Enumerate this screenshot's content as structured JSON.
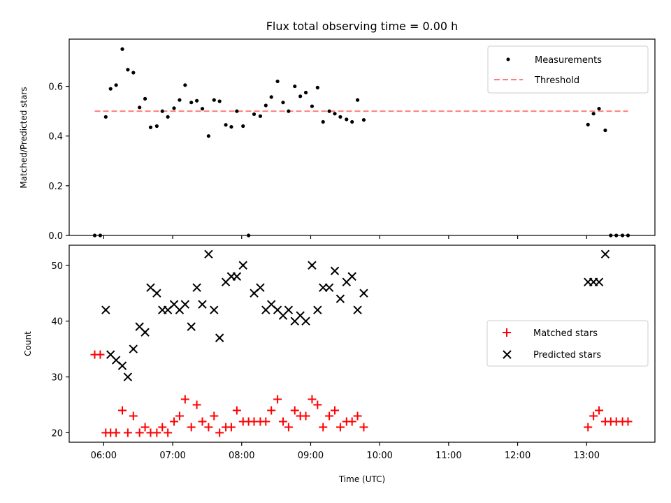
{
  "title": "Flux total observing time = 0.00 h",
  "chart_data": [
    {
      "type": "scatter",
      "name": "top-panel",
      "ylabel": "Matched/Predicted stars",
      "ylim": [
        0,
        0.79
      ],
      "yticks": [
        0.0,
        0.2,
        0.4,
        0.6
      ],
      "ytick_labels": [
        "0.0",
        "0.2",
        "0.4",
        "0.6"
      ],
      "legend_position": "top-right",
      "series": [
        {
          "name": "Measurements",
          "kind": "points",
          "color": "#000000",
          "x": [
            5.87,
            5.95,
            6.03,
            6.1,
            6.18,
            6.27,
            6.35,
            6.43,
            6.52,
            6.6,
            6.68,
            6.77,
            6.85,
            6.93,
            7.02,
            7.1,
            7.18,
            7.27,
            7.35,
            7.43,
            7.52,
            7.6,
            7.68,
            7.77,
            7.85,
            7.93,
            8.02,
            8.1,
            8.18,
            8.27,
            8.35,
            8.43,
            8.52,
            8.6,
            8.68,
            8.77,
            8.85,
            8.93,
            9.02,
            9.1,
            9.18,
            9.27,
            9.35,
            9.43,
            9.52,
            9.6,
            9.68,
            9.77,
            13.02,
            13.1,
            13.18,
            13.27,
            13.35,
            13.43,
            13.52,
            13.6
          ],
          "y": [
            0.0,
            0.0,
            0.477,
            0.59,
            0.605,
            0.75,
            0.667,
            0.655,
            0.515,
            0.55,
            0.435,
            0.44,
            0.5,
            0.477,
            0.512,
            0.545,
            0.605,
            0.535,
            0.542,
            0.51,
            0.4,
            0.545,
            0.54,
            0.445,
            0.437,
            0.5,
            0.44,
            0.0,
            0.488,
            0.48,
            0.523,
            0.557,
            0.62,
            0.535,
            0.5,
            0.6,
            0.56,
            0.575,
            0.52,
            0.595,
            0.457,
            0.5,
            0.49,
            0.477,
            0.467,
            0.457,
            0.545,
            0.465,
            0.446,
            0.49,
            0.51,
            0.423,
            0.0,
            0.0,
            0.0,
            0.0
          ]
        },
        {
          "name": "Threshold",
          "kind": "dashed-line",
          "color": "#ff7f7f",
          "x": [
            5.87,
            13.6
          ],
          "y": [
            0.5,
            0.5
          ]
        }
      ]
    },
    {
      "type": "scatter",
      "name": "bottom-panel",
      "ylabel": "Count",
      "xlabel": "Time (UTC)",
      "ylim": [
        18.3,
        53.6
      ],
      "yticks": [
        20,
        30,
        40,
        50
      ],
      "ytick_labels": [
        "20",
        "30",
        "40",
        "50"
      ],
      "xlim": [
        5.5,
        13.99
      ],
      "xticks": [
        6,
        7,
        8,
        9,
        10,
        11,
        12,
        13
      ],
      "xtick_labels": [
        "06:00",
        "07:00",
        "08:00",
        "09:00",
        "10:00",
        "11:00",
        "12:00",
        "13:00"
      ],
      "legend_position": "center-right",
      "series": [
        {
          "name": "Matched stars",
          "kind": "plus",
          "color": "#ff0000",
          "x": [
            5.87,
            5.95,
            6.03,
            6.1,
            6.18,
            6.27,
            6.35,
            6.43,
            6.52,
            6.6,
            6.68,
            6.77,
            6.85,
            6.93,
            7.02,
            7.1,
            7.18,
            7.27,
            7.35,
            7.43,
            7.52,
            7.6,
            7.68,
            7.77,
            7.85,
            7.93,
            8.02,
            8.1,
            8.18,
            8.27,
            8.35,
            8.43,
            8.52,
            8.6,
            8.68,
            8.77,
            8.85,
            8.93,
            9.02,
            9.1,
            9.18,
            9.27,
            9.35,
            9.43,
            9.52,
            9.6,
            9.68,
            9.77,
            13.02,
            13.1,
            13.18,
            13.27,
            13.35,
            13.43,
            13.52,
            13.6
          ],
          "y": [
            34,
            34,
            20,
            20,
            20,
            24,
            20,
            23,
            20,
            21,
            20,
            20,
            21,
            20,
            22,
            23,
            26,
            21,
            25,
            22,
            21,
            23,
            20,
            21,
            21,
            24,
            22,
            22,
            22,
            22,
            22,
            24,
            26,
            22,
            21,
            24,
            23,
            23,
            26,
            25,
            21,
            23,
            24,
            21,
            22,
            22,
            23,
            21,
            21,
            23,
            24,
            22,
            22,
            22,
            22,
            22
          ]
        },
        {
          "name": "Predicted stars",
          "kind": "x",
          "color": "#000000",
          "x": [
            6.03,
            6.1,
            6.18,
            6.27,
            6.35,
            6.43,
            6.52,
            6.6,
            6.68,
            6.77,
            6.85,
            6.93,
            7.02,
            7.1,
            7.18,
            7.27,
            7.35,
            7.43,
            7.52,
            7.6,
            7.68,
            7.77,
            7.85,
            7.93,
            8.02,
            8.18,
            8.27,
            8.35,
            8.43,
            8.52,
            8.6,
            8.68,
            8.77,
            8.85,
            8.93,
            9.02,
            9.1,
            9.18,
            9.27,
            9.35,
            9.43,
            9.52,
            9.6,
            9.68,
            9.77,
            13.02,
            13.1,
            13.18,
            13.27
          ],
          "y": [
            42,
            34,
            33,
            32,
            30,
            35,
            39,
            38,
            46,
            45,
            42,
            42,
            43,
            42,
            43,
            39,
            46,
            43,
            52,
            42,
            37,
            47,
            48,
            48,
            50,
            45,
            46,
            42,
            43,
            42,
            41,
            42,
            40,
            41,
            40,
            50,
            42,
            46,
            46,
            49,
            44,
            47,
            48,
            42,
            45,
            47,
            47,
            47,
            52
          ]
        }
      ]
    }
  ]
}
